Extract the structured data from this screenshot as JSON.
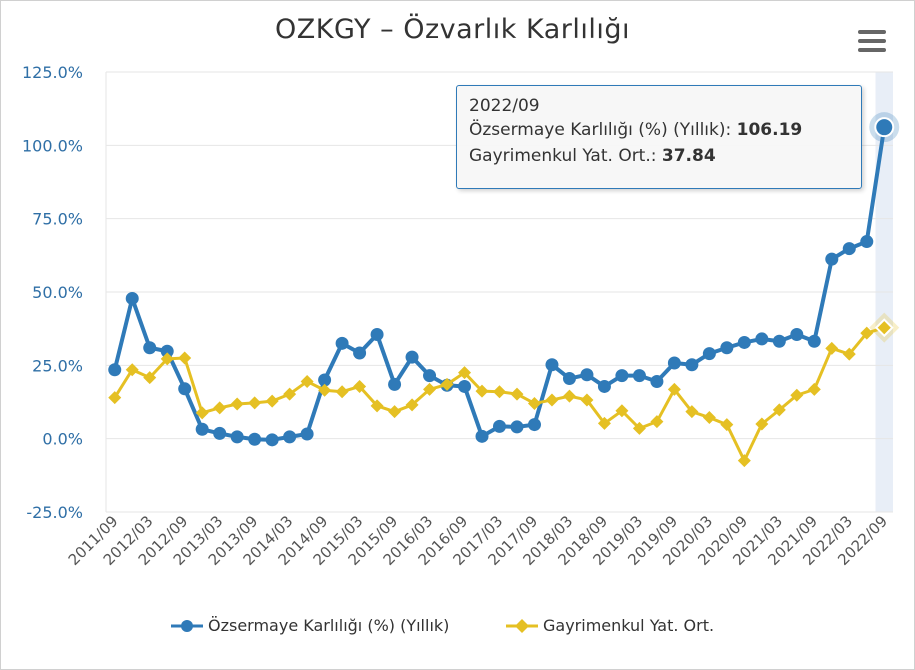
{
  "chart_data": {
    "type": "line",
    "title": "OZKGY – Özvarlık Karlılığı",
    "x": [
      "2011/09",
      "2011/12",
      "2012/03",
      "2012/06",
      "2012/09",
      "2012/12",
      "2013/03",
      "2013/06",
      "2013/09",
      "2013/12",
      "2014/03",
      "2014/06",
      "2014/09",
      "2014/12",
      "2015/03",
      "2015/06",
      "2015/09",
      "2015/12",
      "2016/03",
      "2016/06",
      "2016/09",
      "2016/12",
      "2017/03",
      "2017/06",
      "2017/09",
      "2017/12",
      "2018/03",
      "2018/06",
      "2018/09",
      "2018/12",
      "2019/03",
      "2019/06",
      "2019/09",
      "2019/12",
      "2020/03",
      "2020/06",
      "2020/09",
      "2020/12",
      "2021/03",
      "2021/06",
      "2021/09",
      "2021/12",
      "2022/03",
      "2022/06",
      "2022/09"
    ],
    "x_tick_labels": [
      "2011/09",
      "2012/03",
      "2012/09",
      "2013/03",
      "2013/09",
      "2014/03",
      "2014/09",
      "2015/03",
      "2015/09",
      "2016/03",
      "2016/09",
      "2017/03",
      "2017/09",
      "2018/03",
      "2018/09",
      "2019/03",
      "2019/09",
      "2020/03",
      "2020/09",
      "2021/03",
      "2021/09",
      "2022/03",
      "2022/09"
    ],
    "y_ticks": [
      "125.0%",
      "100.0%",
      "75.0%",
      "50.0%",
      "25.0%",
      "0.0%",
      "-25.0%"
    ],
    "ylim": [
      -25,
      125
    ],
    "grid": true,
    "legend_position": "bottom",
    "series": [
      {
        "name": "Özsermaye Karlılığı (%) (Yıllık)",
        "color": "#2f7ab8",
        "marker": "circle",
        "values": [
          23.5,
          47.8,
          31.0,
          29.8,
          17.0,
          3.2,
          1.8,
          0.6,
          -0.2,
          -0.4,
          0.6,
          1.6,
          20.0,
          32.5,
          29.2,
          35.5,
          18.5,
          27.8,
          21.5,
          18.2,
          17.8,
          0.8,
          4.2,
          4.0,
          4.8,
          25.2,
          20.5,
          21.8,
          17.8,
          21.5,
          21.5,
          19.5,
          25.8,
          25.2,
          29.0,
          31.0,
          32.8,
          34.0,
          33.2,
          35.5,
          33.2,
          61.2,
          64.8,
          67.2,
          106.19
        ]
      },
      {
        "name": "Gayrimenkul Yat. Ort.",
        "color": "#e5c023",
        "marker": "diamond",
        "values": [
          14.0,
          23.5,
          20.8,
          27.2,
          27.5,
          8.8,
          10.5,
          11.8,
          12.2,
          12.8,
          15.2,
          19.5,
          16.5,
          16.0,
          17.8,
          11.2,
          9.2,
          11.5,
          16.8,
          18.5,
          22.5,
          16.2,
          16.0,
          15.2,
          12.0,
          13.2,
          14.5,
          13.2,
          5.2,
          9.5,
          3.5,
          5.8,
          16.8,
          9.2,
          7.2,
          4.8,
          -7.5,
          5.0,
          9.8,
          14.8,
          16.8,
          30.8,
          28.8,
          36.0,
          37.84
        ]
      }
    ],
    "highlighted_index": 44
  },
  "tooltip": {
    "date": "2022/09",
    "s1_label": "Özsermaye Karlılığı (%) (Yıllık): ",
    "s1_value": "106.19",
    "s2_label": "Gayrimenkul Yat. Ort.: ",
    "s2_value": "37.84"
  },
  "menu_icon": "hamburger-menu-icon",
  "colors": {
    "grid": "#e6e6e6",
    "axis_label": "#2f6fa6",
    "tick_label": "#555555",
    "hover_band": "#e8eef7"
  }
}
